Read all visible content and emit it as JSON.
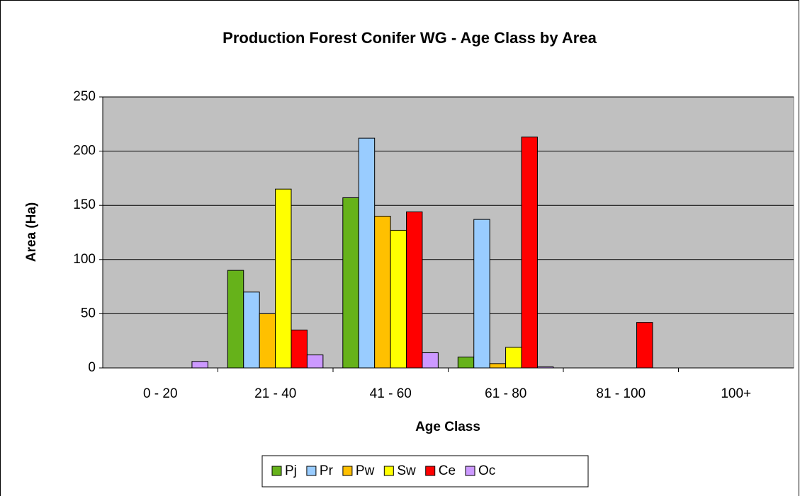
{
  "chart_data": {
    "type": "bar",
    "title": "Production Forest Conifer WG - Age Class by Area",
    "x_label": "Age Class",
    "y_label": "Area (Ha)",
    "categories": [
      "0 - 20",
      "21 - 40",
      "41 - 60",
      "61 - 80",
      "81 - 100",
      "100+"
    ],
    "series": [
      {
        "name": "Pj",
        "color": "#66b21a",
        "values": [
          0,
          90,
          157,
          10,
          0,
          0
        ]
      },
      {
        "name": "Pr",
        "color": "#99ccff",
        "values": [
          0,
          70,
          212,
          137,
          0,
          0
        ]
      },
      {
        "name": "Pw",
        "color": "#ffc000",
        "values": [
          0,
          50,
          140,
          4,
          0,
          0
        ]
      },
      {
        "name": "Sw",
        "color": "#ffff00",
        "values": [
          0,
          165,
          127,
          19,
          0,
          0
        ]
      },
      {
        "name": "Ce",
        "color": "#ff0000",
        "values": [
          0,
          35,
          144,
          213,
          42,
          0
        ]
      },
      {
        "name": "Oc",
        "color": "#cc99ff",
        "values": [
          6,
          12,
          14,
          1,
          0,
          0
        ]
      }
    ],
    "ylim": [
      0,
      250
    ],
    "yticks": [
      0,
      50,
      100,
      150,
      200,
      250
    ],
    "grid": true,
    "legend": "bottom"
  }
}
